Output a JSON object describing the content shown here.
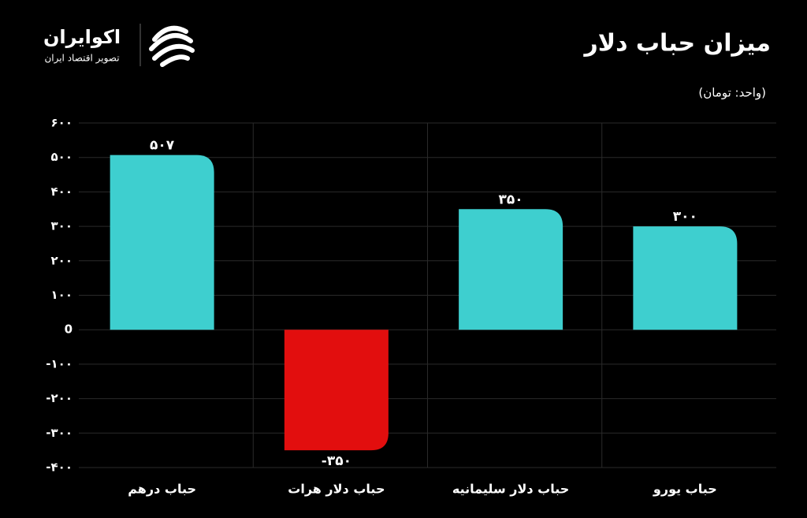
{
  "header": {
    "brand": "اکوایران",
    "tagline": "تصویر اقتصاد ایران"
  },
  "chart_data": {
    "type": "bar",
    "title": "میزان حباب دلار",
    "subtitle": "(واحد: تومان)",
    "categories": [
      "حباب درهم",
      "حباب دلار هرات",
      "حباب دلار سلیمانیه",
      "حباب یورو"
    ],
    "values": [
      507,
      -350,
      350,
      300
    ],
    "value_labels": [
      "۵۰۷",
      "-۳۵۰",
      "۳۵۰",
      "۳۰۰"
    ],
    "colors": [
      "#3ecfcf",
      "#e20e0e",
      "#3ecfcf",
      "#3ecfcf"
    ],
    "ylim": [
      -400,
      600
    ],
    "yticks": [
      {
        "value": 600,
        "label": "۶۰۰"
      },
      {
        "value": 500,
        "label": "۵۰۰"
      },
      {
        "value": 400,
        "label": "۴۰۰"
      },
      {
        "value": 300,
        "label": "۳۰۰"
      },
      {
        "value": 200,
        "label": "۲۰۰"
      },
      {
        "value": 100,
        "label": "۱۰۰"
      },
      0,
      {
        "value": -100,
        "label": "-۱۰۰"
      },
      {
        "value": -200,
        "label": "-۲۰۰"
      },
      {
        "value": -300,
        "label": "-۳۰۰"
      },
      {
        "value": -400,
        "label": "-۴۰۰"
      }
    ],
    "grid": true
  }
}
